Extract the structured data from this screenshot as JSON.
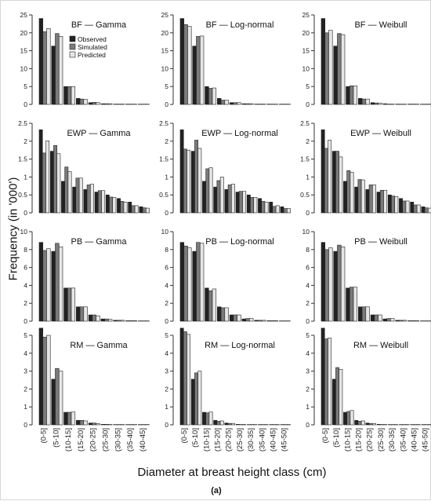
{
  "figure": {
    "ylabel": "Frequency (in '000')",
    "xlabel": "Diameter at breast height class (cm)",
    "caption": "(a)",
    "colors": {
      "observed": "#222222",
      "simulated": "#7a7a7a",
      "predicted": "#e6e6e6"
    }
  },
  "chart_data": [
    {
      "type": "bar",
      "title": "BF — Gamma",
      "ylim": [
        0,
        25
      ],
      "yticks": [
        0,
        5,
        10,
        15,
        20,
        25
      ],
      "legend": {
        "placement": "top-right",
        "entries": [
          "Observed",
          "Simulated",
          "Predicted"
        ]
      },
      "categories": [
        "(0-5]",
        "(5-10]",
        "(10-15]",
        "(15-20]",
        "(20-25]",
        "(25-30]",
        "(30-35]",
        "(35-40]",
        "(40-45]"
      ],
      "series": [
        {
          "name": "Observed",
          "values": [
            24,
            16.3,
            5,
            1.7,
            0.5,
            0.2,
            0.1,
            0.1,
            0.05
          ]
        },
        {
          "name": "Simulated",
          "values": [
            20.3,
            19.8,
            5,
            1.5,
            0.6,
            0.2,
            0.1,
            0.05,
            0.05
          ]
        },
        {
          "name": "Predicted",
          "values": [
            21.2,
            19,
            5,
            1.4,
            0.5,
            0.2,
            0.1,
            0.05,
            0.05
          ]
        }
      ]
    },
    {
      "type": "bar",
      "title": "BF — Log-normal",
      "ylim": [
        0,
        25
      ],
      "yticks": [
        0,
        5,
        10,
        15,
        20,
        25
      ],
      "categories": [
        "(0-5]",
        "(5-10]",
        "(10-15]",
        "(15-20]",
        "(20-25]",
        "(25-30]",
        "(30-35]",
        "(35-40]",
        "(40-45]"
      ],
      "series": [
        {
          "name": "Observed",
          "values": [
            24,
            16.3,
            5,
            1.7,
            0.5,
            0.2,
            0.1,
            0.1,
            0.05
          ]
        },
        {
          "name": "Simulated",
          "values": [
            22.3,
            19,
            4.5,
            1.2,
            0.5,
            0.2,
            0.1,
            0.05,
            0.05
          ]
        },
        {
          "name": "Predicted",
          "values": [
            21.8,
            19.1,
            4.6,
            1.2,
            0.5,
            0.2,
            0.1,
            0.05,
            0.05
          ]
        }
      ]
    },
    {
      "type": "bar",
      "title": "BF — Weibull",
      "ylim": [
        0,
        25
      ],
      "yticks": [
        0,
        5,
        10,
        15,
        20,
        25
      ],
      "categories": [
        "(0-5]",
        "(5-10]",
        "(10-15]",
        "(15-20]",
        "(20-25]",
        "(25-30]",
        "(30-35]",
        "(35-40]",
        "(40-45]"
      ],
      "series": [
        {
          "name": "Observed",
          "values": [
            24,
            16.3,
            5,
            1.7,
            0.5,
            0.2,
            0.1,
            0.1,
            0.05
          ]
        },
        {
          "name": "Simulated",
          "values": [
            20,
            19.8,
            5.2,
            1.5,
            0.4,
            0.1,
            0.05,
            0.05,
            0.02
          ]
        },
        {
          "name": "Predicted",
          "values": [
            20.7,
            19.5,
            5.2,
            1.5,
            0.4,
            0.1,
            0.05,
            0.05,
            0.02
          ]
        }
      ]
    },
    {
      "type": "bar",
      "title": "EWP — Gamma",
      "ylim": [
        0,
        2.5
      ],
      "yticks": [
        0,
        0.5,
        1,
        1.5,
        2,
        2.5
      ],
      "categories": [
        "(0-5]",
        "(5-10]",
        "(10-15]",
        "(15-20]",
        "(20-25]",
        "(25-30]",
        "(30-35]",
        "(35-40]",
        "(40-45]",
        "(45-50]"
      ],
      "series": [
        {
          "name": "Observed",
          "values": [
            2.32,
            1.72,
            0.88,
            0.72,
            0.65,
            0.58,
            0.5,
            0.4,
            0.3,
            0.17
          ]
        },
        {
          "name": "Simulated",
          "values": [
            1.67,
            1.88,
            1.28,
            0.97,
            0.78,
            0.62,
            0.44,
            0.32,
            0.2,
            0.14
          ]
        },
        {
          "name": "Predicted",
          "values": [
            2.01,
            1.65,
            1.15,
            0.97,
            0.8,
            0.62,
            0.43,
            0.3,
            0.2,
            0.13
          ]
        }
      ]
    },
    {
      "type": "bar",
      "title": "EWP — Log-normal",
      "ylim": [
        0,
        2.5
      ],
      "yticks": [
        0,
        0.5,
        1,
        1.5,
        2,
        2.5
      ],
      "categories": [
        "(0-5]",
        "(5-10]",
        "(10-15]",
        "(15-20]",
        "(20-25]",
        "(25-30]",
        "(30-35]",
        "(35-40]",
        "(40-45]",
        "(45-50]"
      ],
      "series": [
        {
          "name": "Observed",
          "values": [
            2.32,
            1.72,
            0.88,
            0.72,
            0.65,
            0.58,
            0.5,
            0.4,
            0.3,
            0.17
          ]
        },
        {
          "name": "Simulated",
          "values": [
            1.78,
            2.03,
            1.23,
            0.9,
            0.78,
            0.6,
            0.43,
            0.32,
            0.18,
            0.12
          ]
        },
        {
          "name": "Predicted",
          "values": [
            1.75,
            1.8,
            1.26,
            1,
            0.8,
            0.6,
            0.43,
            0.3,
            0.2,
            0.12
          ]
        }
      ]
    },
    {
      "type": "bar",
      "title": "EWP — Weibull",
      "ylim": [
        0,
        2.5
      ],
      "yticks": [
        0,
        0.5,
        1,
        1.5,
        2,
        2.5
      ],
      "categories": [
        "(0-5]",
        "(5-10]",
        "(10-15]",
        "(15-20]",
        "(20-25]",
        "(25-30]",
        "(30-35]",
        "(35-40]",
        "(40-45]",
        "(45-50]"
      ],
      "series": [
        {
          "name": "Observed",
          "values": [
            2.32,
            1.72,
            0.88,
            0.72,
            0.65,
            0.58,
            0.5,
            0.4,
            0.3,
            0.17
          ]
        },
        {
          "name": "Simulated",
          "values": [
            1.8,
            1.72,
            1.18,
            0.93,
            0.78,
            0.63,
            0.47,
            0.33,
            0.22,
            0.14
          ]
        },
        {
          "name": "Predicted",
          "values": [
            2.03,
            1.56,
            1.13,
            0.92,
            0.78,
            0.63,
            0.45,
            0.33,
            0.22,
            0.13
          ]
        }
      ]
    },
    {
      "type": "bar",
      "title": "PB — Gamma",
      "ylim": [
        0,
        10
      ],
      "yticks": [
        0,
        2,
        4,
        6,
        8,
        10
      ],
      "categories": [
        "(0-5]",
        "(5-10]",
        "(10-15]",
        "(15-20]",
        "(20-25]",
        "(25-30]",
        "(30-35]",
        "(35-40]",
        "(40-45]"
      ],
      "series": [
        {
          "name": "Observed",
          "values": [
            8.8,
            7.8,
            3.7,
            1.6,
            0.7,
            0.25,
            0.1,
            0.05,
            0.02
          ]
        },
        {
          "name": "Simulated",
          "values": [
            7.9,
            8.7,
            3.7,
            1.6,
            0.7,
            0.25,
            0.1,
            0.05,
            0.02
          ]
        },
        {
          "name": "Predicted",
          "values": [
            8.1,
            8.3,
            3.7,
            1.6,
            0.6,
            0.2,
            0.1,
            0.05,
            0.02
          ]
        }
      ]
    },
    {
      "type": "bar",
      "title": "PB — Log-normal",
      "ylim": [
        0,
        10
      ],
      "yticks": [
        0,
        2,
        4,
        6,
        8,
        10
      ],
      "categories": [
        "(0-5]",
        "(5-10]",
        "(10-15]",
        "(15-20]",
        "(20-25]",
        "(25-30]",
        "(30-35]",
        "(35-40]",
        "(40-45]"
      ],
      "series": [
        {
          "name": "Observed",
          "values": [
            8.8,
            7.8,
            3.7,
            1.6,
            0.7,
            0.25,
            0.1,
            0.05,
            0.02
          ]
        },
        {
          "name": "Simulated",
          "values": [
            8.4,
            8.8,
            3.4,
            1.5,
            0.7,
            0.3,
            0.1,
            0.05,
            0.02
          ]
        },
        {
          "name": "Predicted",
          "values": [
            8.2,
            8.7,
            3.6,
            1.5,
            0.7,
            0.3,
            0.1,
            0.05,
            0.02
          ]
        }
      ]
    },
    {
      "type": "bar",
      "title": "PB — Weibull",
      "ylim": [
        0,
        10
      ],
      "yticks": [
        0,
        2,
        4,
        6,
        8,
        10
      ],
      "categories": [
        "(0-5]",
        "(5-10]",
        "(10-15]",
        "(15-20]",
        "(20-25]",
        "(25-30]",
        "(30-35]",
        "(35-40]",
        "(40-45]"
      ],
      "series": [
        {
          "name": "Observed",
          "values": [
            8.8,
            7.8,
            3.7,
            1.6,
            0.7,
            0.25,
            0.1,
            0.05,
            0.02
          ]
        },
        {
          "name": "Simulated",
          "values": [
            8,
            8.5,
            3.8,
            1.6,
            0.7,
            0.3,
            0.1,
            0.05,
            0.02
          ]
        },
        {
          "name": "Predicted",
          "values": [
            8.2,
            8.3,
            3.8,
            1.6,
            0.7,
            0.3,
            0.1,
            0.05,
            0.02
          ]
        }
      ]
    },
    {
      "type": "bar",
      "title": "RM — Gamma",
      "ylim": [
        0,
        5
      ],
      "yticks": [
        0,
        1,
        2,
        3,
        4,
        5
      ],
      "categories": [
        "(0-5]",
        "(5-10]",
        "(10-15]",
        "(15-20]",
        "(20-25]",
        "(25-30]",
        "(30-35]",
        "(35-40]",
        "(40-45]"
      ],
      "series": [
        {
          "name": "Observed",
          "values": [
            5.4,
            2.55,
            0.7,
            0.25,
            0.1,
            0.03,
            0.01,
            0.01,
            0.01
          ]
        },
        {
          "name": "Simulated",
          "values": [
            4.9,
            3.15,
            0.7,
            0.25,
            0.1,
            0.03,
            0.01,
            0.01,
            0.01
          ]
        },
        {
          "name": "Predicted",
          "values": [
            5,
            3,
            0.72,
            0.22,
            0.07,
            0.02,
            0.01,
            0.01,
            0.01
          ]
        }
      ]
    },
    {
      "type": "bar",
      "title": "RM — Log-normal",
      "ylim": [
        0,
        5
      ],
      "yticks": [
        0,
        1,
        2,
        3,
        4,
        5
      ],
      "categories": [
        "(0-5]",
        "(5-10]",
        "(10-15]",
        "(15-20]",
        "(20-25]",
        "(25-30]",
        "(30-35]",
        "(35-40]",
        "(40-45]",
        "(45-50]"
      ],
      "series": [
        {
          "name": "Observed",
          "values": [
            5.4,
            2.55,
            0.7,
            0.25,
            0.1,
            0.03,
            0.01,
            0.01,
            0.01,
            0.01
          ]
        },
        {
          "name": "Simulated",
          "values": [
            5.2,
            2.9,
            0.67,
            0.2,
            0.08,
            0.02,
            0.01,
            0.01,
            0.01,
            0.01
          ]
        },
        {
          "name": "Predicted",
          "values": [
            5.05,
            3,
            0.72,
            0.22,
            0.08,
            0.02,
            0.01,
            0.01,
            0.01,
            0.01
          ]
        }
      ]
    },
    {
      "type": "bar",
      "title": "RM — Weibull",
      "ylim": [
        0,
        5
      ],
      "yticks": [
        0,
        1,
        2,
        3,
        4,
        5
      ],
      "categories": [
        "(0-5]",
        "(5-10]",
        "(10-15]",
        "(15-20]",
        "(20-25]",
        "(25-30]",
        "(30-35]",
        "(35-40]",
        "(40-45]",
        "(45-50]"
      ],
      "series": [
        {
          "name": "Observed",
          "values": [
            5.4,
            2.55,
            0.7,
            0.25,
            0.1,
            0.03,
            0.01,
            0.01,
            0.01,
            0.01
          ]
        },
        {
          "name": "Simulated",
          "values": [
            4.8,
            3.2,
            0.75,
            0.2,
            0.07,
            0.02,
            0.01,
            0.01,
            0.01,
            0.01
          ]
        },
        {
          "name": "Predicted",
          "values": [
            4.85,
            3.1,
            0.8,
            0.22,
            0.08,
            0.02,
            0.01,
            0.01,
            0.01,
            0.01
          ]
        }
      ]
    }
  ]
}
